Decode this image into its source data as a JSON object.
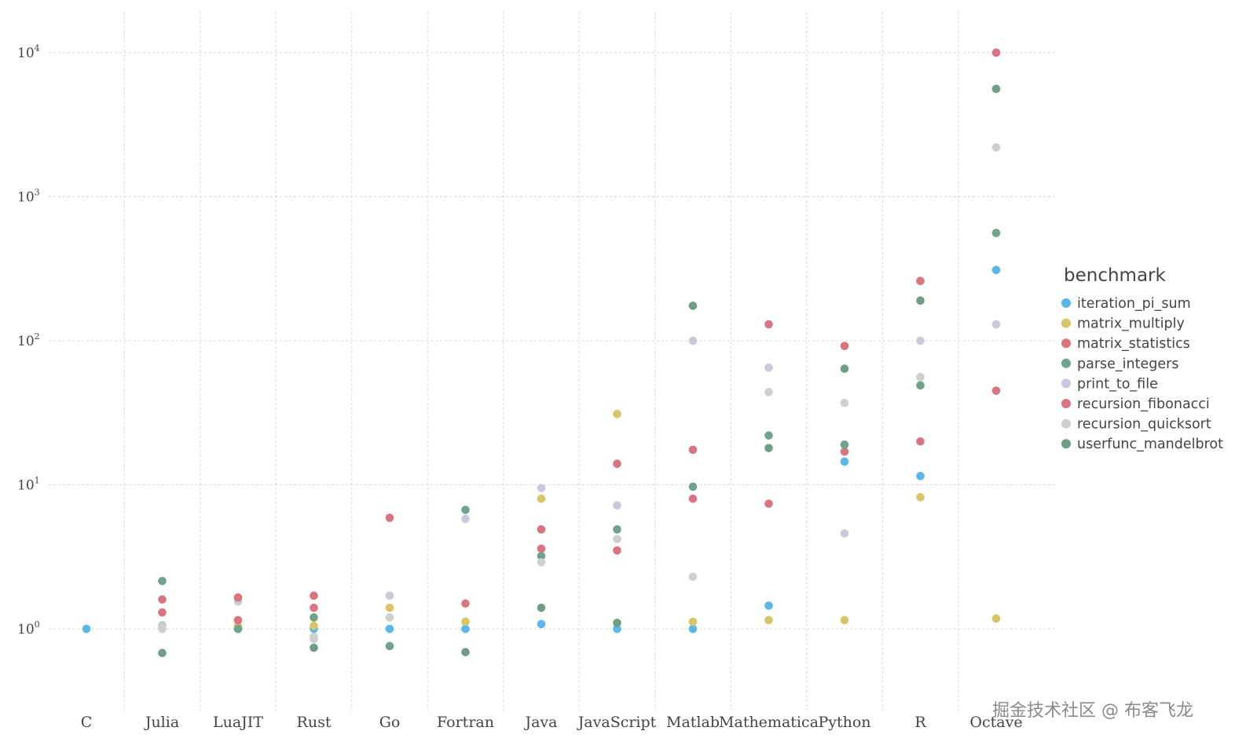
{
  "chart_data": {
    "type": "scatter",
    "title": "",
    "xlabel": "",
    "ylabel": "",
    "yscale": "log",
    "ylim": [
      0.3,
      20000
    ],
    "y_ticks": [
      {
        "value": 1,
        "base": "10",
        "exp": "0"
      },
      {
        "value": 10,
        "base": "10",
        "exp": "1"
      },
      {
        "value": 100,
        "base": "10",
        "exp": "2"
      },
      {
        "value": 1000,
        "base": "10",
        "exp": "3"
      },
      {
        "value": 10000,
        "base": "10",
        "exp": "4"
      }
    ],
    "categories": [
      "C",
      "Julia",
      "LuaJIT",
      "Rust",
      "Go",
      "Fortran",
      "Java",
      "JavaScript",
      "Matlab",
      "Mathematica",
      "Python",
      "R",
      "Octave"
    ],
    "legend_title": "benchmark",
    "series": [
      {
        "name": "iteration_pi_sum",
        "color": "#5bb6ea",
        "values": [
          1.0,
          1.0,
          1.0,
          1.0,
          1.0,
          1.0,
          1.08,
          1.0,
          1.0,
          1.45,
          14.5,
          11.5,
          310
        ]
      },
      {
        "name": "matrix_multiply",
        "color": "#d9c46a",
        "values": [
          null,
          1.05,
          1.05,
          1.05,
          1.4,
          1.12,
          8.0,
          31,
          1.12,
          1.15,
          1.15,
          8.2,
          1.18
        ]
      },
      {
        "name": "matrix_statistics",
        "color": "#d8757f",
        "values": [
          null,
          1.6,
          1.15,
          1.4,
          5.9,
          1.5,
          3.6,
          3.5,
          8.0,
          7.4,
          17,
          20,
          45
        ]
      },
      {
        "name": "parse_integers",
        "color": "#6fa48b",
        "values": [
          null,
          2.15,
          1.0,
          1.2,
          0.76,
          6.7,
          3.2,
          4.9,
          9.7,
          22,
          19,
          49,
          560
        ]
      },
      {
        "name": "print_to_file",
        "color": "#c9c9dd",
        "values": [
          null,
          1.06,
          1.55,
          0.85,
          1.7,
          5.8,
          9.5,
          7.2,
          100,
          65,
          4.6,
          100,
          130
        ]
      },
      {
        "name": "recursion_fibonacci",
        "color": "#d8757f",
        "values": [
          null,
          1.3,
          1.65,
          1.7,
          null,
          null,
          4.9,
          14,
          17.5,
          130,
          92,
          260,
          10000
        ]
      },
      {
        "name": "recursion_quicksort",
        "color": "#cfcfcf",
        "values": [
          null,
          1.0,
          null,
          0.88,
          1.2,
          null,
          2.9,
          4.2,
          2.3,
          44,
          37,
          56,
          2200
        ]
      },
      {
        "name": "userfunc_mandelbrot",
        "color": "#6f9e83",
        "values": [
          null,
          0.68,
          null,
          0.74,
          null,
          0.69,
          1.4,
          1.1,
          175,
          18,
          64,
          190,
          5600
        ]
      }
    ]
  },
  "watermark": "掘金技术社区 @ 布客飞龙"
}
